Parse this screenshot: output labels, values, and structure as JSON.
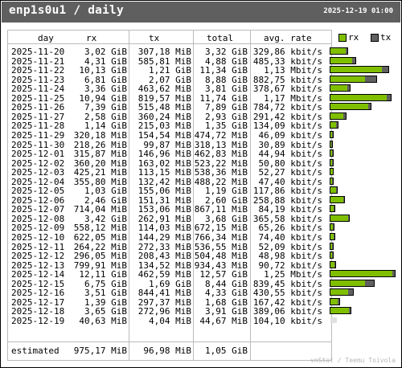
{
  "header": {
    "title": "enp1s0u1 / daily",
    "timestamp": "2025-12-19 01:00"
  },
  "columns": {
    "day": "day",
    "rx": "rx",
    "tx": "tx",
    "total": "total",
    "avg_rate": "avg. rate"
  },
  "legend": {
    "rx_label": "rx",
    "tx_label": "tx",
    "rx_color": "#7fbf00",
    "tx_color": "#606060"
  },
  "rows": [
    {
      "day": "2025-11-20",
      "rx": "3,02 GiB",
      "tx": "307,18 MiB",
      "total": "3,32 GiB",
      "rate": "329,86 kbit/s"
    },
    {
      "day": "2025-11-21",
      "rx": "4,31 GiB",
      "tx": "585,81 MiB",
      "total": "4,88 GiB",
      "rate": "485,33 kbit/s"
    },
    {
      "day": "2025-11-22",
      "rx": "10,13 GiB",
      "tx": "1,21 GiB",
      "total": "11,34 GiB",
      "rate": "1,13 Mbit/s"
    },
    {
      "day": "2025-11-23",
      "rx": "6,81 GiB",
      "tx": "2,07 GiB",
      "total": "8,88 GiB",
      "rate": "882,75 kbit/s"
    },
    {
      "day": "2025-11-24",
      "rx": "3,36 GiB",
      "tx": "463,62 MiB",
      "total": "3,81 GiB",
      "rate": "378,67 kbit/s"
    },
    {
      "day": "2025-11-25",
      "rx": "10,94 GiB",
      "tx": "819,57 MiB",
      "total": "11,74 GiB",
      "rate": "1,17 Mbit/s"
    },
    {
      "day": "2025-11-26",
      "rx": "7,39 GiB",
      "tx": "515,48 MiB",
      "total": "7,89 GiB",
      "rate": "784,72 kbit/s"
    },
    {
      "day": "2025-11-27",
      "rx": "2,58 GiB",
      "tx": "360,24 MiB",
      "total": "2,93 GiB",
      "rate": "291,42 kbit/s"
    },
    {
      "day": "2025-11-28",
      "rx": "1,14 GiB",
      "tx": "215,03 MiB",
      "total": "1,35 GiB",
      "rate": "134,09 kbit/s"
    },
    {
      "day": "2025-11-29",
      "rx": "320,18 MiB",
      "tx": "154,54 MiB",
      "total": "474,72 MiB",
      "rate": "46,09 kbit/s"
    },
    {
      "day": "2025-11-30",
      "rx": "218,26 MiB",
      "tx": "99,87 MiB",
      "total": "318,13 MiB",
      "rate": "30,89 kbit/s"
    },
    {
      "day": "2025-12-01",
      "rx": "315,87 MiB",
      "tx": "146,96 MiB",
      "total": "462,83 MiB",
      "rate": "44,94 kbit/s"
    },
    {
      "day": "2025-12-02",
      "rx": "360,20 MiB",
      "tx": "163,02 MiB",
      "total": "523,22 MiB",
      "rate": "50,80 kbit/s"
    },
    {
      "day": "2025-12-03",
      "rx": "425,21 MiB",
      "tx": "113,15 MiB",
      "total": "538,36 MiB",
      "rate": "52,27 kbit/s"
    },
    {
      "day": "2025-12-04",
      "rx": "355,80 MiB",
      "tx": "132,42 MiB",
      "total": "488,22 MiB",
      "rate": "47,40 kbit/s"
    },
    {
      "day": "2025-12-05",
      "rx": "1,03 GiB",
      "tx": "155,06 MiB",
      "total": "1,19 GiB",
      "rate": "117,86 kbit/s"
    },
    {
      "day": "2025-12-06",
      "rx": "2,46 GiB",
      "tx": "151,31 MiB",
      "total": "2,60 GiB",
      "rate": "258,88 kbit/s"
    },
    {
      "day": "2025-12-07",
      "rx": "714,04 MiB",
      "tx": "153,06 MiB",
      "total": "867,11 MiB",
      "rate": "84,19 kbit/s"
    },
    {
      "day": "2025-12-08",
      "rx": "3,42 GiB",
      "tx": "262,91 MiB",
      "total": "3,68 GiB",
      "rate": "365,58 kbit/s"
    },
    {
      "day": "2025-12-09",
      "rx": "558,12 MiB",
      "tx": "114,03 MiB",
      "total": "672,15 MiB",
      "rate": "65,26 kbit/s"
    },
    {
      "day": "2025-12-10",
      "rx": "622,05 MiB",
      "tx": "144,29 MiB",
      "total": "766,34 MiB",
      "rate": "74,40 kbit/s"
    },
    {
      "day": "2025-12-11",
      "rx": "264,22 MiB",
      "tx": "272,33 MiB",
      "total": "536,55 MiB",
      "rate": "52,09 kbit/s"
    },
    {
      "day": "2025-12-12",
      "rx": "296,05 MiB",
      "tx": "208,43 MiB",
      "total": "504,48 MiB",
      "rate": "48,98 kbit/s"
    },
    {
      "day": "2025-12-13",
      "rx": "799,91 MiB",
      "tx": "134,52 MiB",
      "total": "934,43 MiB",
      "rate": "90,72 kbit/s"
    },
    {
      "day": "2025-12-14",
      "rx": "12,11 GiB",
      "tx": "462,59 MiB",
      "total": "12,57 GiB",
      "rate": "1,25 Mbit/s"
    },
    {
      "day": "2025-12-15",
      "rx": "6,75 GiB",
      "tx": "1,69 GiB",
      "total": "8,44 GiB",
      "rate": "839,45 kbit/s"
    },
    {
      "day": "2025-12-16",
      "rx": "3,51 GiB",
      "tx": "844,41 MiB",
      "total": "4,33 GiB",
      "rate": "430,55 kbit/s"
    },
    {
      "day": "2025-12-17",
      "rx": "1,39 GiB",
      "tx": "297,37 MiB",
      "total": "1,68 GiB",
      "rate": "167,42 kbit/s"
    },
    {
      "day": "2025-12-18",
      "rx": "3,65 GiB",
      "tx": "272,96 MiB",
      "total": "3,91 GiB",
      "rate": "389,06 kbit/s"
    },
    {
      "day": "2025-12-19",
      "rx": "40,63 MiB",
      "tx": "4,04 MiB",
      "total": "44,67 MiB",
      "rate": "104,10 kbit/s",
      "partial": true
    }
  ],
  "estimated": {
    "label": "estimated",
    "rx": "975,17 MiB",
    "tx": "96,98 MiB",
    "total": "1,05 GiB"
  },
  "footer": "vnStat / Teemu Toivola"
}
